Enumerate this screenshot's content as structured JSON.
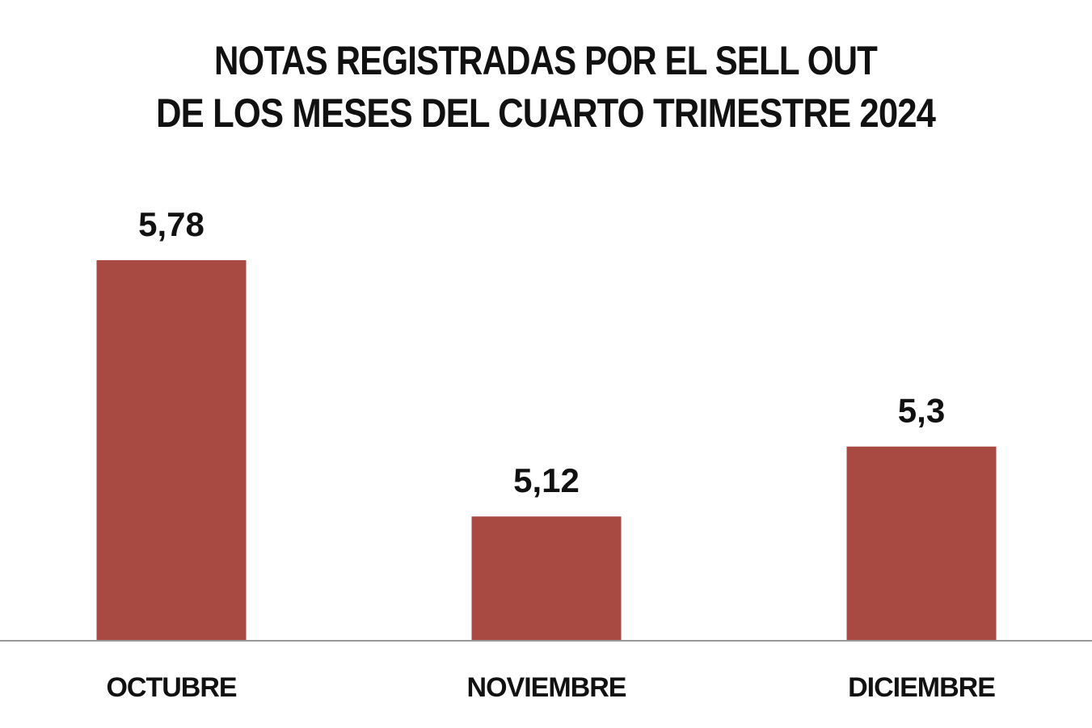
{
  "chart_data": {
    "type": "bar",
    "title_lines": [
      "NOTAS REGISTRADAS POR EL SELL OUT",
      "DE LOS MESES DEL CUARTO TRIMESTRE 2024"
    ],
    "categories": [
      "OCTUBRE",
      "NOVIEMBRE",
      "DICIEMBRE"
    ],
    "values": [
      5.78,
      5.12,
      5.3
    ],
    "value_labels": [
      "5,78",
      "5,12",
      "5,3"
    ],
    "xlabel": "",
    "ylabel": "",
    "ylim": [
      4.8,
      5.78
    ],
    "grid": false,
    "legend": "none",
    "colors": {
      "bar": "#A84A42",
      "axis": "#9a9a9a",
      "text": "#111111"
    }
  }
}
